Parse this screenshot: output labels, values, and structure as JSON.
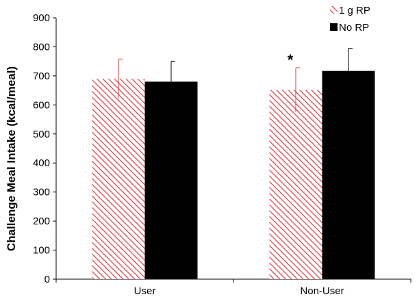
{
  "chart_data": {
    "type": "bar",
    "categories": [
      "User",
      "Non-User"
    ],
    "series": [
      {
        "name": "1 g RP",
        "values": [
          690,
          652
        ],
        "errors": [
          68,
          76
        ],
        "color": "#e0393e",
        "pattern": "hatch"
      },
      {
        "name": "No RP",
        "values": [
          680,
          717
        ],
        "errors": [
          70,
          78
        ],
        "color": "#000000",
        "pattern": "solid"
      }
    ],
    "title": "",
    "xlabel": "",
    "ylabel": "Challenge Meal Intake (kcal/meal)",
    "ylim": [
      0,
      900
    ],
    "yticks": [
      0,
      100,
      200,
      300,
      400,
      500,
      600,
      700,
      800,
      900
    ],
    "grid": false,
    "legend_position": "top-right",
    "annotations": [
      {
        "text": "*",
        "category": "Non-User",
        "series": "1 g RP"
      }
    ]
  }
}
